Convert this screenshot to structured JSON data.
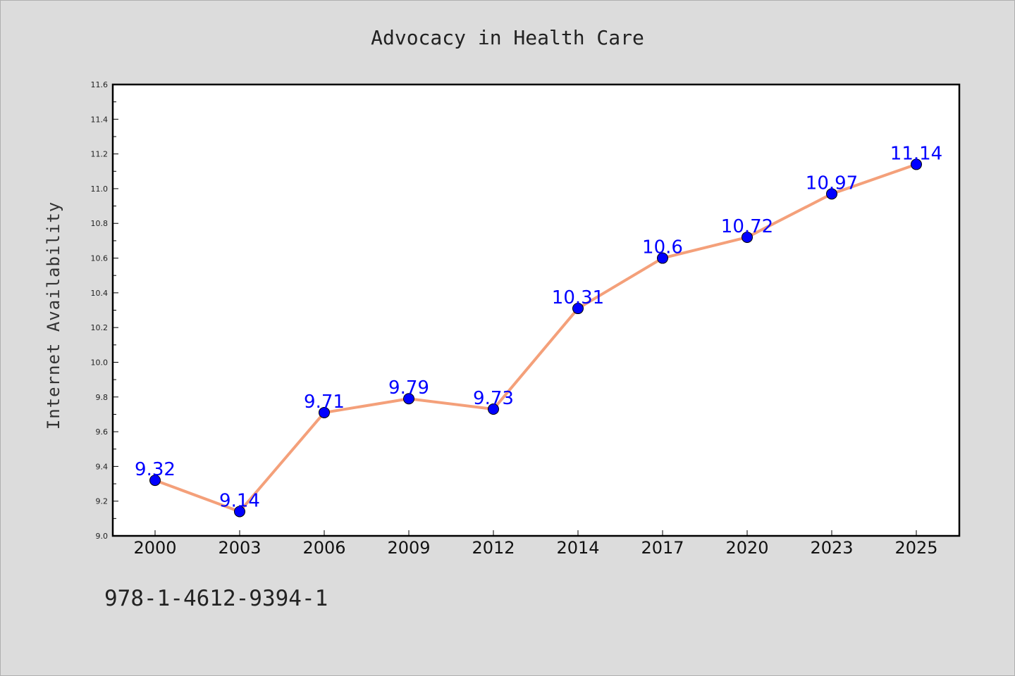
{
  "chart_data": {
    "type": "line",
    "title": "Advocacy in Health Care",
    "xlabel": "",
    "ylabel": "Internet Availability",
    "categories": [
      "2000",
      "2003",
      "2006",
      "2009",
      "2012",
      "2014",
      "2017",
      "2020",
      "2023",
      "2025"
    ],
    "series": [
      {
        "values": [
          9.32,
          9.14,
          9.71,
          9.79,
          9.73,
          10.31,
          10.6,
          10.72,
          10.97,
          11.14
        ],
        "data_labels": [
          "9.32",
          "9.14",
          "9.71",
          "9.79",
          "9.73",
          "10.31",
          "10.6",
          "10.72",
          "10.97",
          "11.14"
        ],
        "line_color": "#f4a07a",
        "marker_color": "#0000ff"
      }
    ],
    "ylim": [
      9.0,
      11.6
    ],
    "yticks": [
      "9.0",
      "9.2",
      "9.4",
      "9.6",
      "9.8",
      "10.0",
      "10.2",
      "10.4",
      "10.6",
      "10.8",
      "11.0",
      "11.2",
      "11.4",
      "11.6"
    ],
    "grid": false,
    "legend": "none"
  },
  "footnote": "978-1-4612-9394-1"
}
